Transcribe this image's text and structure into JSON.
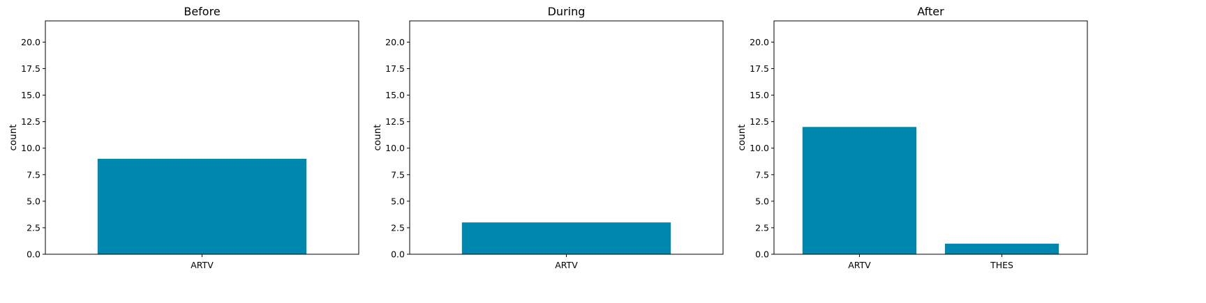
{
  "chart_data": [
    {
      "type": "bar",
      "title": "Before",
      "xlabel": "",
      "ylabel": "count",
      "categories": [
        "ARTV"
      ],
      "values": [
        9
      ],
      "ylim": [
        0,
        22
      ],
      "yticks": [
        "0.0",
        "2.5",
        "5.0",
        "7.5",
        "10.0",
        "12.5",
        "15.0",
        "17.5",
        "20.0"
      ],
      "grid": false,
      "color": "#0087AD"
    },
    {
      "type": "bar",
      "title": "During",
      "xlabel": "",
      "ylabel": "count",
      "categories": [
        "ARTV"
      ],
      "values": [
        3
      ],
      "ylim": [
        0,
        22
      ],
      "yticks": [
        "0.0",
        "2.5",
        "5.0",
        "7.5",
        "10.0",
        "12.5",
        "15.0",
        "17.5",
        "20.0"
      ],
      "grid": false,
      "color": "#0087AD"
    },
    {
      "type": "bar",
      "title": "After",
      "xlabel": "",
      "ylabel": "count",
      "categories": [
        "ARTV",
        "THES"
      ],
      "values": [
        12,
        1
      ],
      "ylim": [
        0,
        22
      ],
      "yticks": [
        "0.0",
        "2.5",
        "5.0",
        "7.5",
        "10.0",
        "12.5",
        "15.0",
        "17.5",
        "20.0"
      ],
      "grid": false,
      "color": "#0087AD"
    }
  ]
}
